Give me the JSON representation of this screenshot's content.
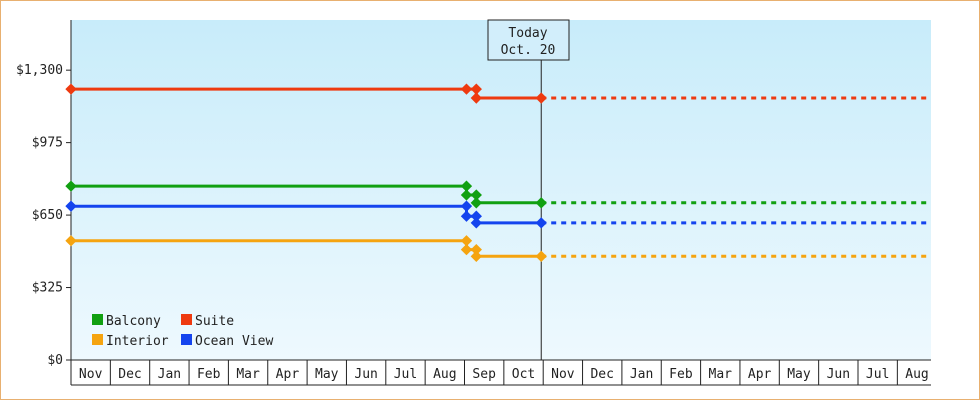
{
  "chart_data": {
    "type": "line",
    "y_ticks": [
      "$1,300",
      "$975",
      "$650",
      "$325",
      "$0"
    ],
    "y_tick_values": [
      1300,
      975,
      650,
      325,
      0
    ],
    "ylim": [
      0,
      1525
    ],
    "months": [
      "Nov",
      "Dec",
      "Jan",
      "Feb",
      "Mar",
      "Apr",
      "May",
      "Jun",
      "Jul",
      "Aug",
      "Sep",
      "Oct",
      "Nov",
      "Dec",
      "Jan",
      "Feb",
      "Mar",
      "Apr",
      "May",
      "Jun",
      "Jul",
      "Aug"
    ],
    "today_label": "Today",
    "today_date": "Oct. 20",
    "today_month_position": 11.95,
    "grid": false,
    "legend_position": "bottom-left",
    "series": [
      {
        "name": "Balcony",
        "color": "#11a011",
        "history": [
          [
            0,
            780
          ],
          [
            10.05,
            780
          ],
          [
            10.05,
            740
          ],
          [
            10.3,
            740
          ],
          [
            10.3,
            705
          ],
          [
            11.95,
            705
          ]
        ],
        "projection": [
          [
            11.95,
            705
          ],
          [
            21.75,
            705
          ]
        ]
      },
      {
        "name": "Suite",
        "color": "#ee3a10",
        "history": [
          [
            0,
            1215
          ],
          [
            10.05,
            1215
          ],
          [
            10.3,
            1215
          ],
          [
            10.3,
            1175
          ],
          [
            11.95,
            1175
          ]
        ],
        "projection": [
          [
            11.95,
            1175
          ],
          [
            21.75,
            1175
          ]
        ]
      },
      {
        "name": "Interior",
        "color": "#f5a410",
        "history": [
          [
            0,
            535
          ],
          [
            10.05,
            535
          ],
          [
            10.05,
            495
          ],
          [
            10.3,
            495
          ],
          [
            10.3,
            465
          ],
          [
            11.95,
            465
          ]
        ],
        "projection": [
          [
            11.95,
            465
          ],
          [
            21.75,
            465
          ]
        ]
      },
      {
        "name": "Ocean View",
        "color": "#1444ee",
        "history": [
          [
            0,
            690
          ],
          [
            10.05,
            690
          ],
          [
            10.05,
            645
          ],
          [
            10.3,
            645
          ],
          [
            10.3,
            615
          ],
          [
            11.95,
            615
          ]
        ],
        "projection": [
          [
            11.95,
            615
          ],
          [
            21.75,
            615
          ]
        ]
      }
    ]
  }
}
